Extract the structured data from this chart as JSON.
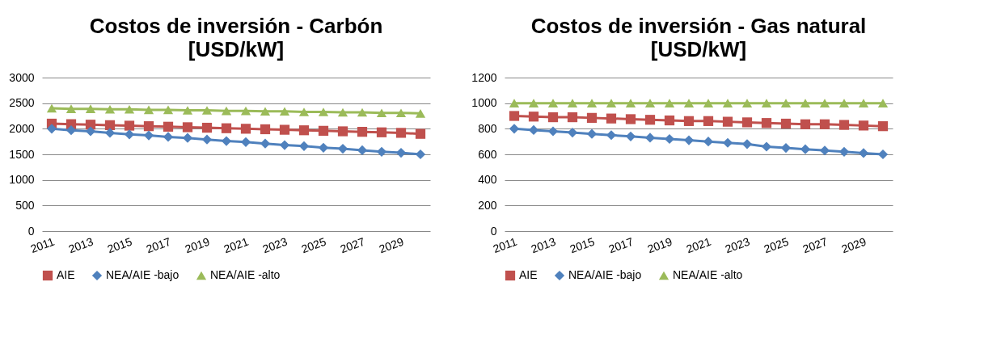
{
  "chart_data": [
    {
      "type": "line",
      "title": "Costos de inversión - Carbón",
      "subtitle": "[USD/kW]",
      "categories": [
        "2011",
        null,
        "2013",
        null,
        "2015",
        null,
        "2017",
        null,
        "2019",
        null,
        "2021",
        null,
        "2023",
        null,
        "2025",
        null,
        "2027",
        null,
        "2029",
        null
      ],
      "series": [
        {
          "name": "AIE",
          "color": "#c0504d",
          "marker": "square",
          "values": [
            2100,
            2090,
            2080,
            2070,
            2060,
            2050,
            2040,
            2030,
            2020,
            2010,
            2000,
            1990,
            1980,
            1970,
            1960,
            1950,
            1940,
            1930,
            1920,
            1900
          ]
        },
        {
          "name": "NEA/AIE -bajo",
          "color": "#4f81bd",
          "marker": "diamond",
          "values": [
            2000,
            1970,
            1950,
            1920,
            1890,
            1870,
            1840,
            1820,
            1790,
            1760,
            1740,
            1710,
            1680,
            1660,
            1630,
            1610,
            1580,
            1550,
            1530,
            1500
          ]
        },
        {
          "name": "NEA/AIE -alto",
          "color": "#9bbb59",
          "marker": "triangle",
          "values": [
            2400,
            2390,
            2390,
            2380,
            2380,
            2370,
            2370,
            2360,
            2360,
            2350,
            2350,
            2340,
            2340,
            2330,
            2330,
            2320,
            2320,
            2310,
            2310,
            2300
          ]
        }
      ],
      "ylim": [
        0,
        3000
      ],
      "yticks": [
        0,
        500,
        1000,
        1500,
        2000,
        2500,
        3000
      ],
      "grid": "y",
      "legend": "bottom"
    },
    {
      "type": "line",
      "title": "Costos de inversión - Gas natural",
      "subtitle": "[USD/kW]",
      "categories": [
        "2011",
        null,
        "2013",
        null,
        "2015",
        null,
        "2017",
        null,
        "2019",
        null,
        "2021",
        null,
        "2023",
        null,
        "2025",
        null,
        "2027",
        null,
        "2029",
        null
      ],
      "series": [
        {
          "name": "AIE",
          "color": "#c0504d",
          "marker": "square",
          "values": [
            900,
            895,
            890,
            890,
            885,
            880,
            875,
            870,
            865,
            860,
            860,
            855,
            850,
            845,
            840,
            835,
            835,
            830,
            825,
            820
          ]
        },
        {
          "name": "NEA/AIE -bajo",
          "color": "#4f81bd",
          "marker": "diamond",
          "values": [
            800,
            790,
            780,
            770,
            760,
            750,
            740,
            730,
            720,
            710,
            700,
            690,
            680,
            660,
            650,
            640,
            630,
            620,
            610,
            600
          ]
        },
        {
          "name": "NEA/AIE -alto",
          "color": "#9bbb59",
          "marker": "triangle",
          "values": [
            1000,
            1000,
            1000,
            1000,
            1000,
            1000,
            1000,
            1000,
            1000,
            1000,
            1000,
            1000,
            1000,
            1000,
            1000,
            1000,
            1000,
            1000,
            1000,
            1000
          ]
        }
      ],
      "ylim": [
        0,
        1200
      ],
      "yticks": [
        0,
        200,
        400,
        600,
        800,
        1000,
        1200
      ],
      "grid": "y",
      "legend": "bottom"
    }
  ]
}
